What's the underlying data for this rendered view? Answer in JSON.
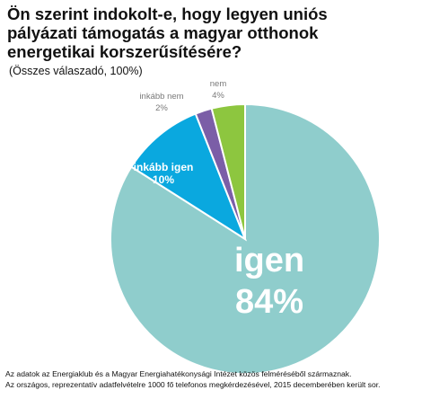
{
  "title_lines": [
    "Ön szerint indokolt-e, hogy legyen uniós",
    "pályázati támogatás a magyar otthonok",
    "energetikai korszerűsítésére?"
  ],
  "subtitle": "(Összes válaszadó, 100%)",
  "chart_data": {
    "type": "pie",
    "start_angle_deg": 0,
    "direction": "clockwise",
    "slices": [
      {
        "label": "igen",
        "value": 84,
        "value_label": "84%",
        "color": "#8fcdcc",
        "label_color": "#ffffff"
      },
      {
        "label": "inkább igen",
        "value": 10,
        "value_label": "10%",
        "color": "#0aa8df",
        "label_color": "#ffffff"
      },
      {
        "label": "inkább nem",
        "value": 2,
        "value_label": "2%",
        "color": "#7b5ea7",
        "label_color": "#7a7a7a"
      },
      {
        "label": "nem",
        "value": 4,
        "value_label": "4%",
        "color": "#8dc63f",
        "label_color": "#7a7a7a"
      }
    ]
  },
  "footnote_lines": [
    "Az adatok az Energiaklub és a Magyar Energiahatékonysági Intézet közös felméréséből származnak.",
    "Az országos, reprezentatív adatfelvételre 1000 fő telefonos megkérdezésével, 2015 decemberében került sor."
  ]
}
